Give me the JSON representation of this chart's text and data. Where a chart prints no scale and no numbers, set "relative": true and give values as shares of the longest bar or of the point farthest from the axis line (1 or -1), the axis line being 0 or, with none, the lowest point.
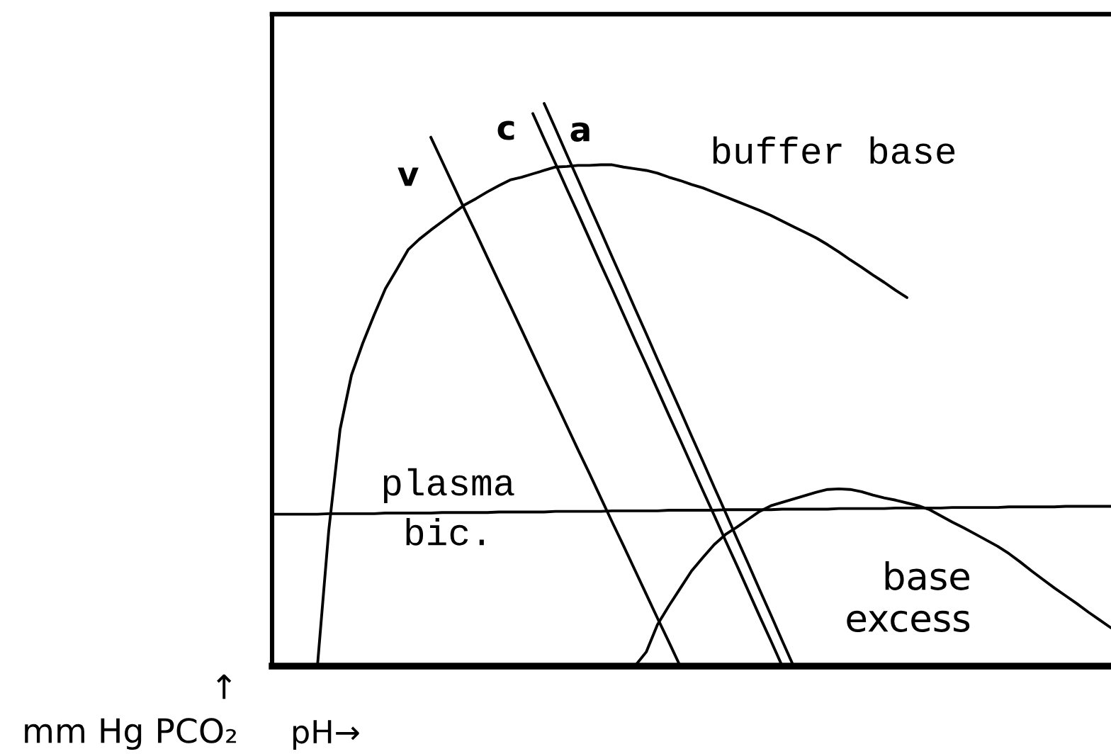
{
  "chart_data": {
    "type": "line",
    "relative": true,
    "xlabel": "pH→",
    "ylabel": "↑\nmm Hg PCO₂",
    "categories": [
      null,
      null,
      null,
      null,
      null,
      null,
      null,
      null,
      null,
      null,
      null,
      null,
      null,
      null,
      null,
      null,
      null,
      null,
      null,
      null,
      null,
      null,
      null,
      null,
      null,
      null,
      null,
      null,
      null,
      null,
      null,
      null,
      null,
      null,
      null,
      null,
      null,
      null,
      null,
      null,
      null,
      null,
      null,
      null,
      null,
      null,
      null,
      null,
      null,
      null,
      null,
      null,
      null,
      null,
      null,
      null,
      null,
      null,
      null,
      null,
      null,
      null,
      null,
      null,
      null,
      null,
      null,
      null,
      null,
      null,
      null,
      null,
      null,
      null,
      null
    ],
    "series": [
      {
        "name": "v",
        "color": "#000000",
        "values": [
          null,
          null,
          null,
          null,
          null,
          null,
          null,
          null,
          null,
          null,
          null,
          null,
          null,
          null,
          0.94,
          0.897,
          0.854,
          0.811,
          0.769,
          0.726,
          0.683,
          0.641,
          0.598,
          0.555,
          0.512,
          0.47,
          0.427,
          0.384,
          0.342,
          0.299,
          0.256,
          0.214,
          0.171,
          0.128,
          0.085,
          0.043,
          0,
          null,
          null,
          null,
          null,
          null,
          null,
          null,
          null,
          null,
          null,
          null,
          null,
          null,
          null,
          null,
          null,
          null,
          null,
          null,
          null,
          null,
          null,
          null,
          null,
          null,
          null,
          null,
          null,
          null,
          null,
          null,
          null,
          null,
          null,
          null,
          null,
          null,
          null
        ]
      },
      {
        "name": "c",
        "color": "#000000",
        "values": [
          null,
          null,
          null,
          null,
          null,
          null,
          null,
          null,
          null,
          null,
          null,
          null,
          null,
          null,
          null,
          null,
          null,
          null,
          null,
          null,
          null,
          null,
          null,
          0.982,
          0.937,
          0.893,
          0.848,
          0.804,
          0.759,
          0.714,
          0.67,
          0.625,
          0.58,
          0.536,
          0.491,
          0.446,
          0.402,
          0.357,
          0.312,
          0.268,
          0.223,
          0.179,
          0.134,
          0.089,
          0.045,
          0,
          null,
          null,
          null,
          null,
          null,
          null,
          null,
          null,
          null,
          null,
          null,
          null,
          null,
          null,
          null,
          null,
          null,
          null,
          null,
          null,
          null,
          null,
          null,
          null,
          null,
          null,
          null,
          null,
          null
        ]
      },
      {
        "name": "a",
        "color": "#000000",
        "values": [
          null,
          null,
          null,
          null,
          null,
          null,
          null,
          null,
          null,
          null,
          null,
          null,
          null,
          null,
          null,
          null,
          null,
          null,
          null,
          null,
          null,
          null,
          null,
          null,
          1,
          0.955,
          0.909,
          0.864,
          0.818,
          0.773,
          0.727,
          0.682,
          0.636,
          0.591,
          0.545,
          0.5,
          0.455,
          0.409,
          0.364,
          0.318,
          0.273,
          0.227,
          0.182,
          0.136,
          0.091,
          0.045,
          0,
          null,
          null,
          null,
          null,
          null,
          null,
          null,
          null,
          null,
          null,
          null,
          null,
          null,
          null,
          null,
          null,
          null,
          null,
          null,
          null,
          null,
          null,
          null,
          null,
          null,
          null,
          null,
          null
        ]
      },
      {
        "name": "buffer base",
        "color": "#000000",
        "values": [
          null,
          null,
          null,
          null,
          0,
          0.241,
          0.421,
          0.517,
          0.574,
          0.624,
          0.671,
          0.705,
          0.74,
          0.759,
          0.775,
          0.79,
          0.805,
          0.82,
          0.831,
          0.843,
          0.854,
          0.864,
          0.869,
          0.875,
          0.881,
          0.887,
          0.888,
          0.89,
          0.89,
          0.891,
          0.891,
          0.887,
          0.884,
          0.881,
          0.876,
          0.869,
          0.863,
          0.856,
          0.85,
          0.842,
          0.834,
          0.826,
          0.818,
          0.81,
          0.801,
          0.791,
          0.781,
          0.771,
          0.761,
          0.749,
          0.736,
          0.722,
          0.709,
          0.695,
          0.682,
          0.668,
          0.655,
          null,
          null,
          null,
          null,
          null,
          null,
          null,
          null,
          null,
          null,
          null,
          null,
          null,
          null,
          null,
          null,
          null,
          null
        ]
      },
      {
        "name": "plasma bic.",
        "color": "#000000",
        "values": [
          0.27,
          0.27,
          0.27,
          0.27,
          0.27,
          0.271,
          0.271,
          0.271,
          0.271,
          0.271,
          0.272,
          0.272,
          0.272,
          0.272,
          0.272,
          0.273,
          0.273,
          0.273,
          0.273,
          0.273,
          0.274,
          0.274,
          0.274,
          0.274,
          0.274,
          0.275,
          0.275,
          0.275,
          0.275,
          0.275,
          0.276,
          0.276,
          0.276,
          0.276,
          0.276,
          0.277,
          0.277,
          0.277,
          0.277,
          0.277,
          0.278,
          0.278,
          0.278,
          0.278,
          0.278,
          0.279,
          0.279,
          0.279,
          0.279,
          0.279,
          0.28,
          0.28,
          0.28,
          0.28,
          0.28,
          0.281,
          0.281,
          0.281,
          0.281,
          0.281,
          0.282,
          0.282,
          0.282,
          0.282,
          0.282,
          0.283,
          0.283,
          0.283,
          0.283,
          0.283,
          0.284,
          0.284,
          0.284,
          0.284,
          0.284
        ]
      },
      {
        "name": "base excess",
        "color": "#000000",
        "values": [
          null,
          null,
          null,
          null,
          null,
          null,
          null,
          null,
          null,
          null,
          null,
          null,
          null,
          null,
          null,
          null,
          null,
          null,
          null,
          null,
          null,
          null,
          null,
          null,
          null,
          null,
          null,
          null,
          null,
          null,
          null,
          null,
          0,
          0.025,
          0.074,
          0.107,
          0.138,
          0.169,
          0.193,
          0.216,
          0.234,
          0.247,
          0.261,
          0.275,
          0.285,
          0.291,
          0.297,
          0.303,
          0.309,
          0.314,
          0.315,
          0.314,
          0.31,
          0.304,
          0.299,
          0.295,
          0.29,
          0.285,
          0.278,
          0.267,
          0.256,
          0.246,
          0.235,
          0.224,
          0.213,
          0.2,
          0.185,
          0.169,
          0.154,
          0.139,
          0.125,
          0.111,
          0.096,
          0.082,
          0.068
        ]
      }
    ]
  }
}
